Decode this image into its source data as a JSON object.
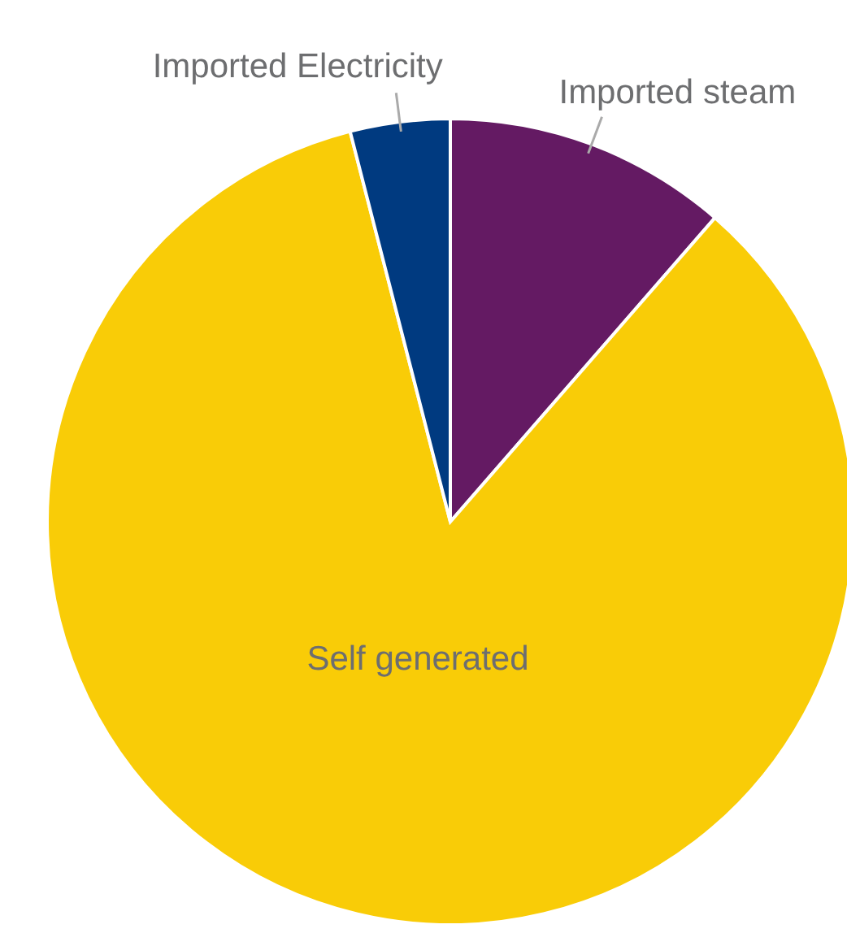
{
  "chart_data": {
    "type": "pie",
    "categories": [
      "Imported steam",
      "Self generated",
      "Imported Electricity"
    ],
    "values": [
      11.4,
      84.6,
      4.0
    ],
    "colors": [
      "#641a63",
      "#f9cc07",
      "#003a80"
    ],
    "legend": false
  }
}
